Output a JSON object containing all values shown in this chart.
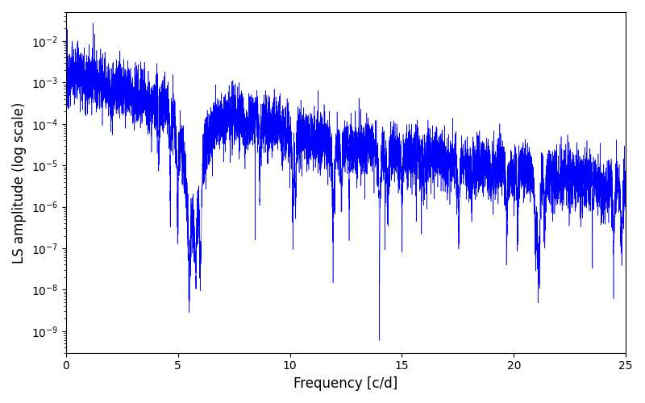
{
  "xlabel": "Frequency [c/d]",
  "ylabel": "LS amplitude (log scale)",
  "line_color": "#0000ff",
  "xlim": [
    0,
    25
  ],
  "ylim": [
    3e-10,
    0.05
  ],
  "xticks": [
    0,
    5,
    10,
    15,
    20,
    25
  ],
  "figsize": [
    8.0,
    5.0
  ],
  "dpi": 100,
  "background_color": "#ffffff",
  "seed": 12345,
  "n_points": 8000,
  "freq_max": 25.0
}
